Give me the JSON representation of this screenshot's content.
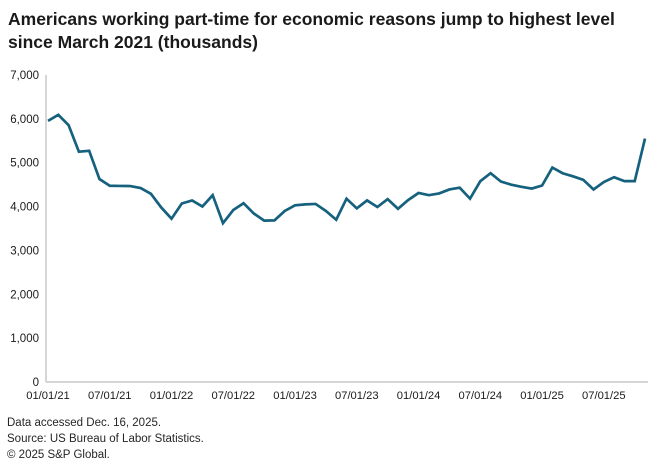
{
  "header": {
    "title_line1": "Americans working part-time for economic reasons jump to highest level",
    "title_line2": "since March 2021 (thousands)"
  },
  "chart_data": {
    "type": "line",
    "title": "Americans working part-time for economic reasons jump to highest level since March 2021 (thousands)",
    "unit": "thousands",
    "xlabel": "",
    "ylabel": "",
    "ylim": [
      0,
      7000
    ],
    "grid": false,
    "legend": false,
    "line_color": "#15617e",
    "line_width": 2.7,
    "axis_color": "#c9c9c9",
    "tick_label_color": "#1a1a1a",
    "y_ticks": [
      0,
      1000,
      2000,
      3000,
      4000,
      5000,
      6000,
      7000
    ],
    "y_tick_labels": [
      "0",
      "1,000",
      "2,000",
      "3,000",
      "4,000",
      "5,000",
      "6,000",
      "7,000"
    ],
    "x_tick_labels": [
      "01/01/21",
      "07/01/21",
      "01/01/22",
      "07/01/22",
      "01/01/23",
      "07/01/23",
      "01/01/24",
      "07/01/24",
      "01/01/25",
      "07/01/25"
    ],
    "x_tick_indices": [
      0,
      6,
      12,
      18,
      24,
      30,
      36,
      42,
      48,
      54
    ],
    "series": [
      {
        "name": "Part-time for economic reasons",
        "x": [
          "2021-01",
          "2021-02",
          "2021-03",
          "2021-04",
          "2021-05",
          "2021-06",
          "2021-07",
          "2021-08",
          "2021-09",
          "2021-10",
          "2021-11",
          "2021-12",
          "2022-01",
          "2022-02",
          "2022-03",
          "2022-04",
          "2022-05",
          "2022-06",
          "2022-07",
          "2022-08",
          "2022-09",
          "2022-10",
          "2022-11",
          "2022-12",
          "2023-01",
          "2023-02",
          "2023-03",
          "2023-04",
          "2023-05",
          "2023-06",
          "2023-07",
          "2023-08",
          "2023-09",
          "2023-10",
          "2023-11",
          "2023-12",
          "2024-01",
          "2024-02",
          "2024-03",
          "2024-04",
          "2024-05",
          "2024-06",
          "2024-07",
          "2024-08",
          "2024-09",
          "2024-10",
          "2024-11",
          "2024-12",
          "2025-01",
          "2025-02",
          "2025-03",
          "2025-04",
          "2025-05",
          "2025-06",
          "2025-07",
          "2025-08",
          "2025-09",
          "2025-10",
          "2025-11"
        ],
        "values": [
          5954,
          6093,
          5857,
          5250,
          5271,
          4627,
          4475,
          4470,
          4468,
          4422,
          4292,
          3980,
          3723,
          4070,
          4140,
          4000,
          4260,
          3621,
          3921,
          4077,
          3841,
          3680,
          3685,
          3900,
          4030,
          4050,
          4060,
          3900,
          3700,
          4180,
          3960,
          4140,
          3990,
          4170,
          3950,
          4150,
          4310,
          4260,
          4300,
          4390,
          4430,
          4180,
          4580,
          4760,
          4570,
          4500,
          4450,
          4410,
          4480,
          4890,
          4760,
          4690,
          4610,
          4390,
          4560,
          4670,
          4580,
          4580,
          5550
        ]
      }
    ]
  },
  "footer": {
    "accessed": "Data accessed Dec. 16, 2025.",
    "source": "Source: US Bureau of Labor Statistics.",
    "copyright": "© 2025 S&P Global."
  }
}
